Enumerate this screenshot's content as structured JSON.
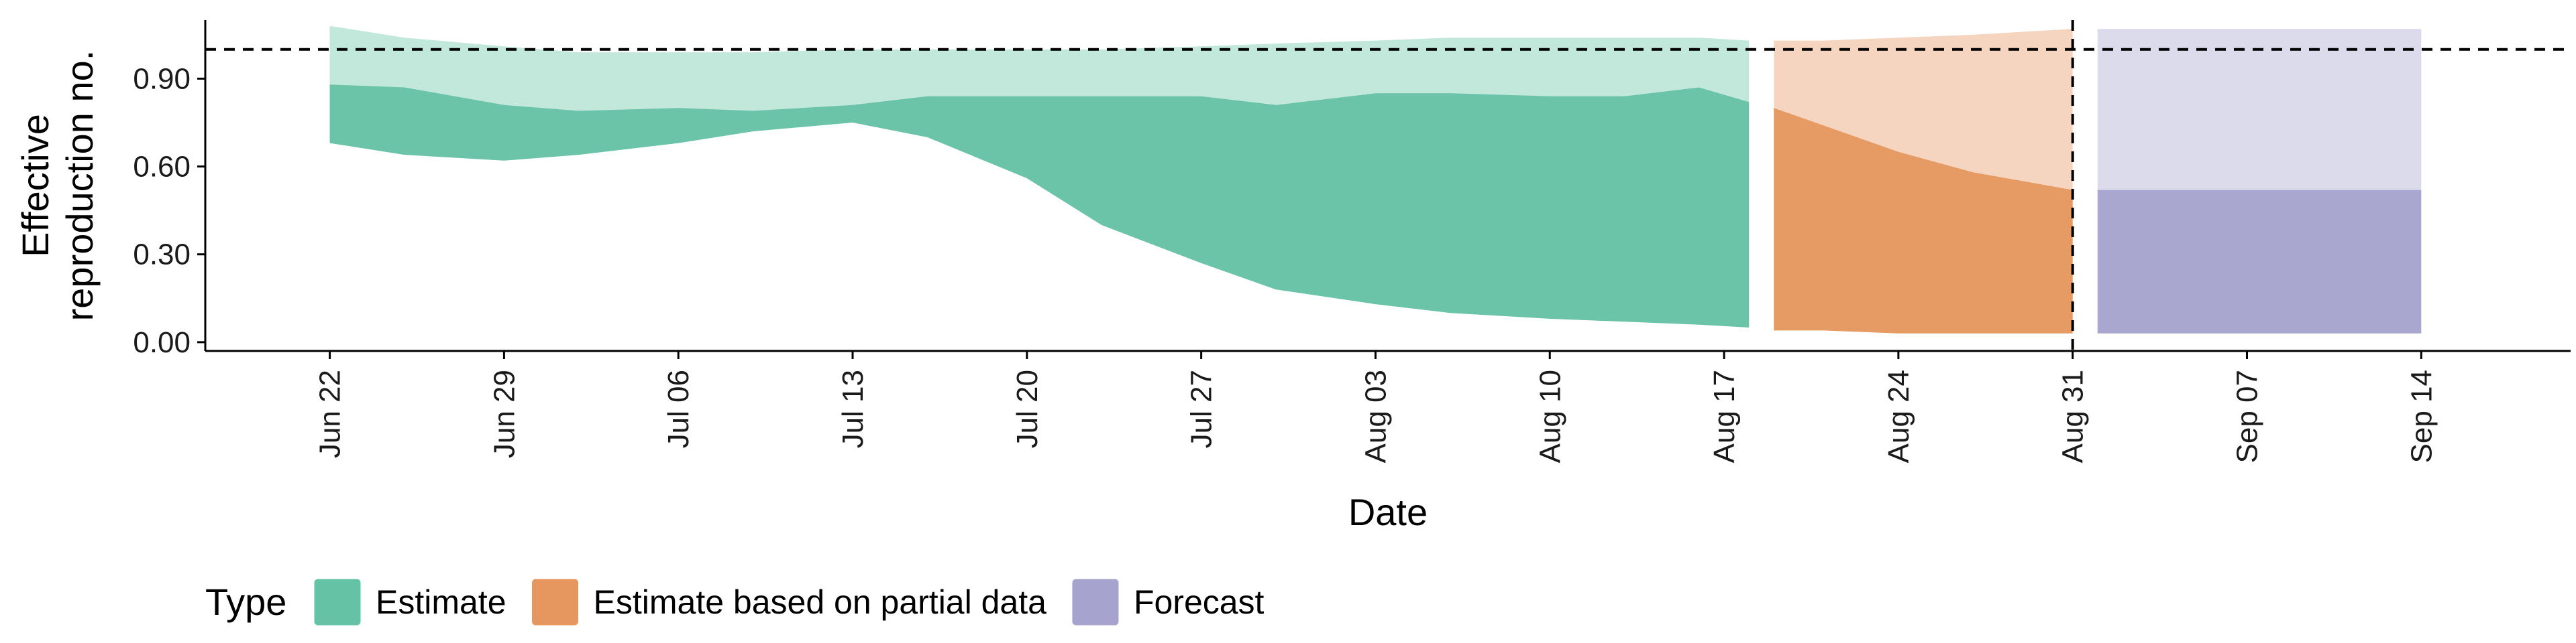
{
  "chart_data": {
    "type": "area",
    "xlabel": "Date",
    "ylabel_lines": [
      "Effective",
      "reproduction no."
    ],
    "ylim": [
      -0.03,
      1.1
    ],
    "yticks": [
      0.0,
      0.3,
      0.6,
      0.9
    ],
    "ytick_labels": [
      "0.00",
      "0.30",
      "0.60",
      "0.90"
    ],
    "xlim": [
      "2020-06-17",
      "2020-09-20"
    ],
    "xticks": [
      "2020-06-22",
      "2020-06-29",
      "2020-07-06",
      "2020-07-13",
      "2020-07-20",
      "2020-07-27",
      "2020-08-03",
      "2020-08-10",
      "2020-08-17",
      "2020-08-24",
      "2020-08-31",
      "2020-09-07",
      "2020-09-14"
    ],
    "xtick_labels": [
      "Jun 22",
      "Jun 29",
      "Jul 06",
      "Jul 13",
      "Jul 20",
      "Jul 27",
      "Aug 03",
      "Aug 10",
      "Aug 17",
      "Aug 24",
      "Aug 31",
      "Sep 07",
      "Sep 14"
    ],
    "reference_lines": {
      "horizontal_y": 1.0,
      "vertical_date": "2020-08-31"
    },
    "legend": {
      "title": "Type",
      "position": "bottom-left"
    },
    "series": [
      {
        "name": "Estimate",
        "color": "#66c2a5",
        "dates": [
          "2020-06-22",
          "2020-06-25",
          "2020-06-29",
          "2020-07-02",
          "2020-07-06",
          "2020-07-09",
          "2020-07-13",
          "2020-07-16",
          "2020-07-20",
          "2020-07-23",
          "2020-07-27",
          "2020-07-30",
          "2020-08-03",
          "2020-08-06",
          "2020-08-10",
          "2020-08-13",
          "2020-08-16",
          "2020-08-18"
        ],
        "outer_lower": [
          0.68,
          0.64,
          0.62,
          0.64,
          0.68,
          0.72,
          0.75,
          0.7,
          0.56,
          0.4,
          0.27,
          0.18,
          0.13,
          0.1,
          0.08,
          0.07,
          0.06,
          0.05
        ],
        "outer_upper": [
          1.08,
          1.04,
          1.01,
          0.99,
          0.99,
          0.99,
          1.0,
          1.0,
          1.0,
          1.0,
          1.01,
          1.02,
          1.03,
          1.04,
          1.04,
          1.04,
          1.04,
          1.03
        ],
        "inner_upper": [
          0.88,
          0.87,
          0.81,
          0.79,
          0.8,
          0.79,
          0.81,
          0.84,
          0.84,
          0.84,
          0.84,
          0.81,
          0.85,
          0.85,
          0.84,
          0.84,
          0.87,
          0.82
        ]
      },
      {
        "name": "Estimate based on partial data",
        "color": "#e5975f",
        "dates": [
          "2020-08-19",
          "2020-08-21",
          "2020-08-24",
          "2020-08-27",
          "2020-08-31"
        ],
        "outer_lower": [
          0.04,
          0.04,
          0.03,
          0.03,
          0.03
        ],
        "outer_upper": [
          1.03,
          1.03,
          1.04,
          1.05,
          1.07
        ],
        "inner_upper": [
          0.8,
          0.74,
          0.65,
          0.58,
          0.52
        ]
      },
      {
        "name": "Forecast",
        "color": "#a6a4cf",
        "dates": [
          "2020-09-01",
          "2020-09-14"
        ],
        "outer_lower": [
          0.03,
          0.03
        ],
        "outer_upper": [
          1.07,
          1.07
        ],
        "inner_upper": [
          0.52,
          0.52
        ]
      }
    ]
  }
}
